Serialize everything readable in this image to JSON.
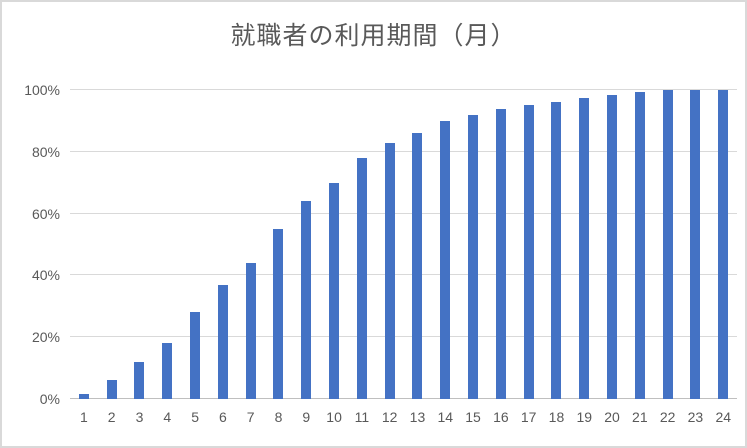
{
  "chart_data": {
    "type": "bar",
    "title": "就職者の利用期間（月）",
    "xlabel": "",
    "ylabel": "",
    "categories": [
      "1",
      "2",
      "3",
      "4",
      "5",
      "6",
      "7",
      "8",
      "9",
      "10",
      "11",
      "12",
      "13",
      "14",
      "15",
      "16",
      "17",
      "18",
      "19",
      "20",
      "21",
      "22",
      "23",
      "24"
    ],
    "values": [
      1.5,
      6,
      12,
      18,
      28,
      37,
      44,
      55,
      64,
      70,
      78,
      83,
      86,
      90,
      92,
      94,
      95,
      96,
      97.5,
      98.5,
      99.5,
      100,
      100,
      100
    ],
    "ylim": [
      0,
      100
    ],
    "yticks": [
      {
        "v": 0,
        "label": "0%"
      },
      {
        "v": 20,
        "label": "20%"
      },
      {
        "v": 40,
        "label": "40%"
      },
      {
        "v": 60,
        "label": "60%"
      },
      {
        "v": 80,
        "label": "80%"
      },
      {
        "v": 100,
        "label": "100%"
      }
    ],
    "grid": true,
    "legend": "none",
    "colors": {
      "bar": "#4472c4",
      "gridline": "#d9d9d9",
      "axis_line": "#bfbfbf",
      "title_text": "#595959",
      "tick_text": "#595959",
      "background": "#ffffff",
      "border": "#d9d9d9"
    }
  }
}
